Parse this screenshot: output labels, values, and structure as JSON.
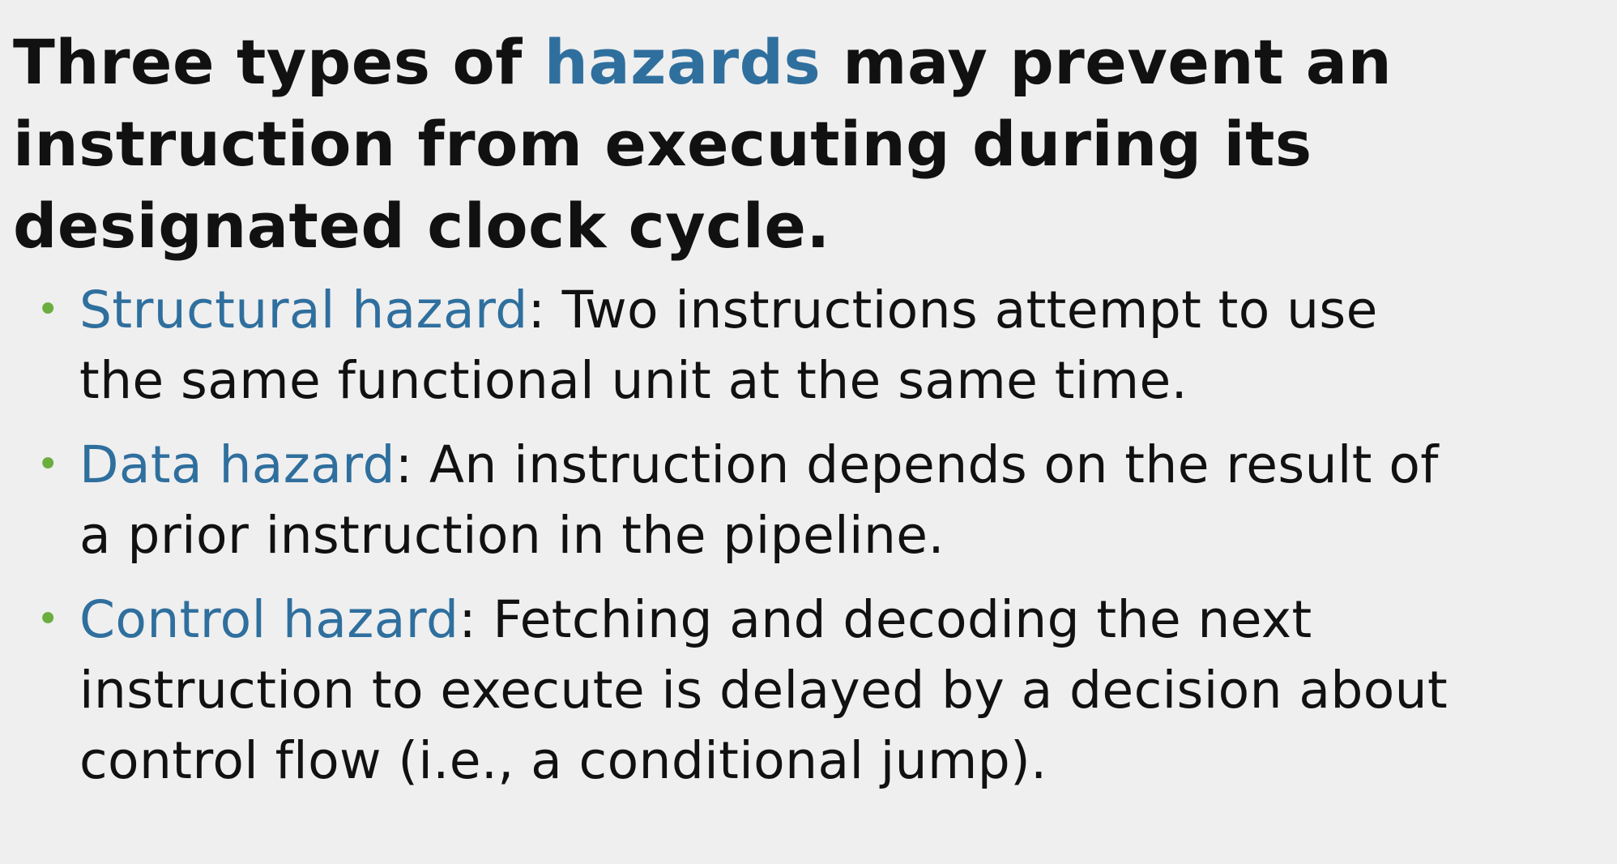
{
  "heading": {
    "before": "Three types of",
    "term": "hazards",
    "line1_after": "may prevent an",
    "line2": "instruction from executing during its",
    "line3": "designated clock cycle."
  },
  "bullet_marker": "•",
  "colors": {
    "background": "#efefef",
    "text": "#111111",
    "term": "#2f6f9e",
    "bullet": "#6aae3f"
  },
  "bullets": [
    {
      "term": "Structural hazard",
      "line1_rest": ": Two instructions attempt to use",
      "line2": "the same functional unit at the same time.",
      "line3": ""
    },
    {
      "term": "Data hazard",
      "line1_rest": ": An instruction depends on the result of",
      "line2": "a prior instruction in the pipeline.",
      "line3": ""
    },
    {
      "term": "Control hazard",
      "line1_rest": ": Fetching and decoding the next",
      "line2": "instruction to execute is delayed by a decision about",
      "line3": "control flow (i.e., a conditional jump)."
    }
  ]
}
